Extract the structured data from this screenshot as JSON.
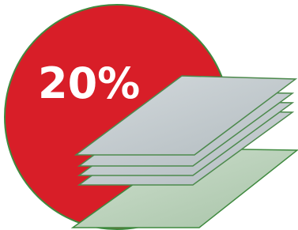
{
  "badge": {
    "label": "20%"
  }
}
